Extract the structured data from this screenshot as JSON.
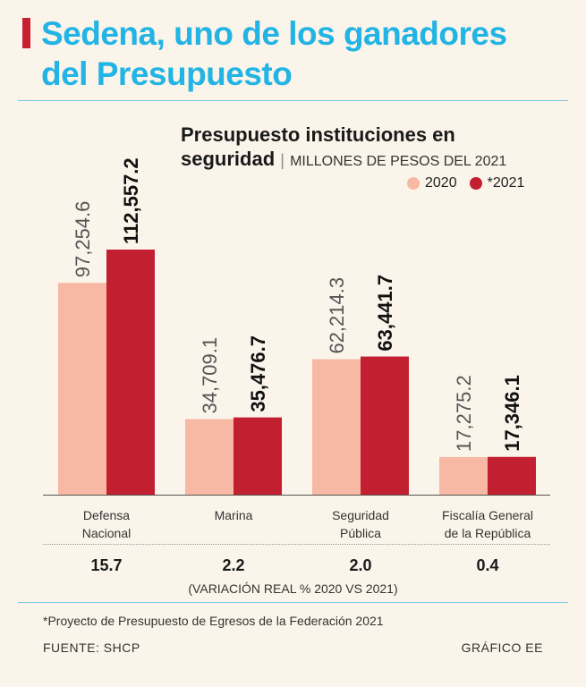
{
  "headline": {
    "line1": "Sedena, uno de los ganadores",
    "line2": "del Presupuesto"
  },
  "chart_title": {
    "line1": "Presupuesto instituciones en",
    "line2": "seguridad",
    "separator": "|",
    "unit": "MILLONES DE PESOS DEL 2021"
  },
  "legend": [
    {
      "label": "2020",
      "color": "#f8b9a4"
    },
    {
      "label": "*2021",
      "color": "#c21f30"
    }
  ],
  "chart_data": {
    "type": "bar",
    "title": "Presupuesto instituciones en seguridad",
    "ylabel": "MILLONES DE PESOS DEL 2021",
    "categories": [
      [
        "Defensa",
        "Nacional"
      ],
      [
        "Marina"
      ],
      [
        "Seguridad",
        "Pública"
      ],
      [
        "Fiscalía General",
        "de la República"
      ]
    ],
    "series": [
      {
        "name": "2020",
        "color": "#f8b9a4",
        "values": [
          97254.6,
          34709.1,
          62214.3,
          17275.2
        ],
        "labels": [
          "97,254.6",
          "34,709.1",
          "62,214.3",
          "17,275.2"
        ]
      },
      {
        "name": "*2021",
        "color": "#c21f30",
        "values": [
          112557.2,
          35476.7,
          63441.7,
          17346.1
        ],
        "labels": [
          "112,557.2",
          "35,476.7",
          "63,441.7",
          "17,346.1"
        ]
      }
    ],
    "ylim": [
      0,
      112557.2
    ]
  },
  "variation": {
    "values": [
      "15.7",
      "2.2",
      "2.0",
      "0.4"
    ],
    "caption": "(VARIACIÓN REAL % 2020 VS 2021)"
  },
  "footnote": "*Proyecto de Presupuesto de Egresos de la Federación 2021",
  "source": "FUENTE: SHCP",
  "credit": "GRÁFICO EE"
}
